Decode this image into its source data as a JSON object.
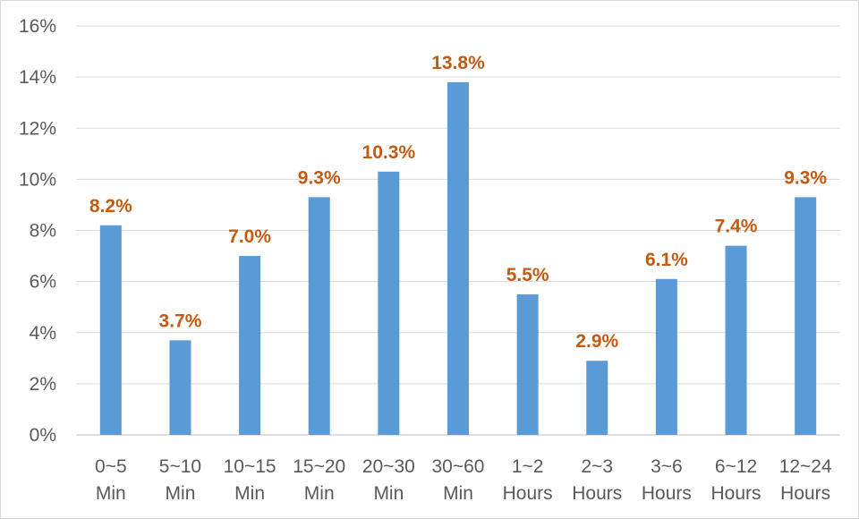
{
  "chart_data": {
    "type": "bar",
    "categories": [
      [
        "0~5",
        "Min"
      ],
      [
        "5~10",
        "Min"
      ],
      [
        "10~15",
        "Min"
      ],
      [
        "15~20",
        "Min"
      ],
      [
        "20~30",
        "Min"
      ],
      [
        "30~60",
        "Min"
      ],
      [
        "1~2",
        "Hours"
      ],
      [
        "2~3",
        "Hours"
      ],
      [
        "3~6",
        "Hours"
      ],
      [
        "6~12",
        "Hours"
      ],
      [
        "12~24",
        "Hours"
      ]
    ],
    "values": [
      8.2,
      3.7,
      7.0,
      9.3,
      10.3,
      13.8,
      5.5,
      2.9,
      6.1,
      7.4,
      9.3
    ],
    "data_labels": [
      "8.2%",
      "3.7%",
      "7.0%",
      "9.3%",
      "10.3%",
      "13.8%",
      "5.5%",
      "2.9%",
      "6.1%",
      "7.4%",
      "9.3%"
    ],
    "title": "",
    "xlabel": "",
    "ylabel": "",
    "ylim": [
      0,
      16
    ],
    "y_ticks": [
      0,
      2,
      4,
      6,
      8,
      10,
      12,
      14,
      16
    ],
    "y_tick_labels": [
      "0%",
      "2%",
      "4%",
      "6%",
      "8%",
      "10%",
      "12%",
      "14%",
      "16%"
    ],
    "grid": true,
    "legend": "none",
    "colors": {
      "bar": "#5B9BD5",
      "data_label": "#C55A11",
      "grid": "#D9D9D9",
      "tick_label": "#595959"
    }
  }
}
